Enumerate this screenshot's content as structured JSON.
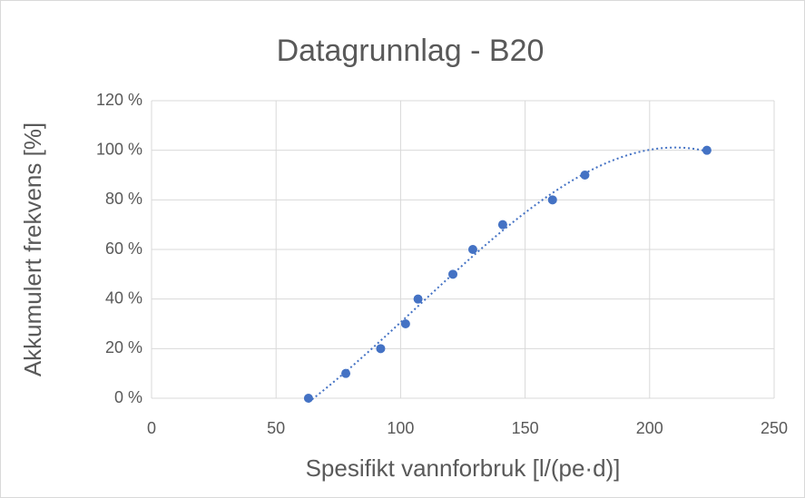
{
  "chart_data": {
    "type": "scatter",
    "title": "Datagrunnlag - B20",
    "x_label": "Spesifikt vannforbruk [l/(pe·d)]",
    "y_label": "Akkumulert frekvens [%]",
    "series": [
      {
        "color": "#4472c4",
        "x": [
          63,
          78,
          92,
          102,
          107,
          121,
          129,
          141,
          161,
          174,
          223
        ],
        "values": [
          0,
          10,
          20,
          30,
          40,
          50,
          60,
          70,
          80,
          90,
          100
        ]
      }
    ],
    "trendline": {
      "type": "polynomial",
      "order": 3
    },
    "xlim": [
      0,
      250
    ],
    "xticks": [
      0,
      50,
      100,
      150,
      200,
      250
    ],
    "ylim": [
      0,
      120
    ],
    "yticks": [
      {
        "value": 0,
        "label": "0 %"
      },
      {
        "value": 20,
        "label": "20 %"
      },
      {
        "value": 40,
        "label": "40 %"
      },
      {
        "value": 60,
        "label": "60 %"
      },
      {
        "value": 80,
        "label": "80 %"
      },
      {
        "value": 100,
        "label": "100 %"
      },
      {
        "value": 120,
        "label": "120 %"
      }
    ],
    "grid": true
  }
}
